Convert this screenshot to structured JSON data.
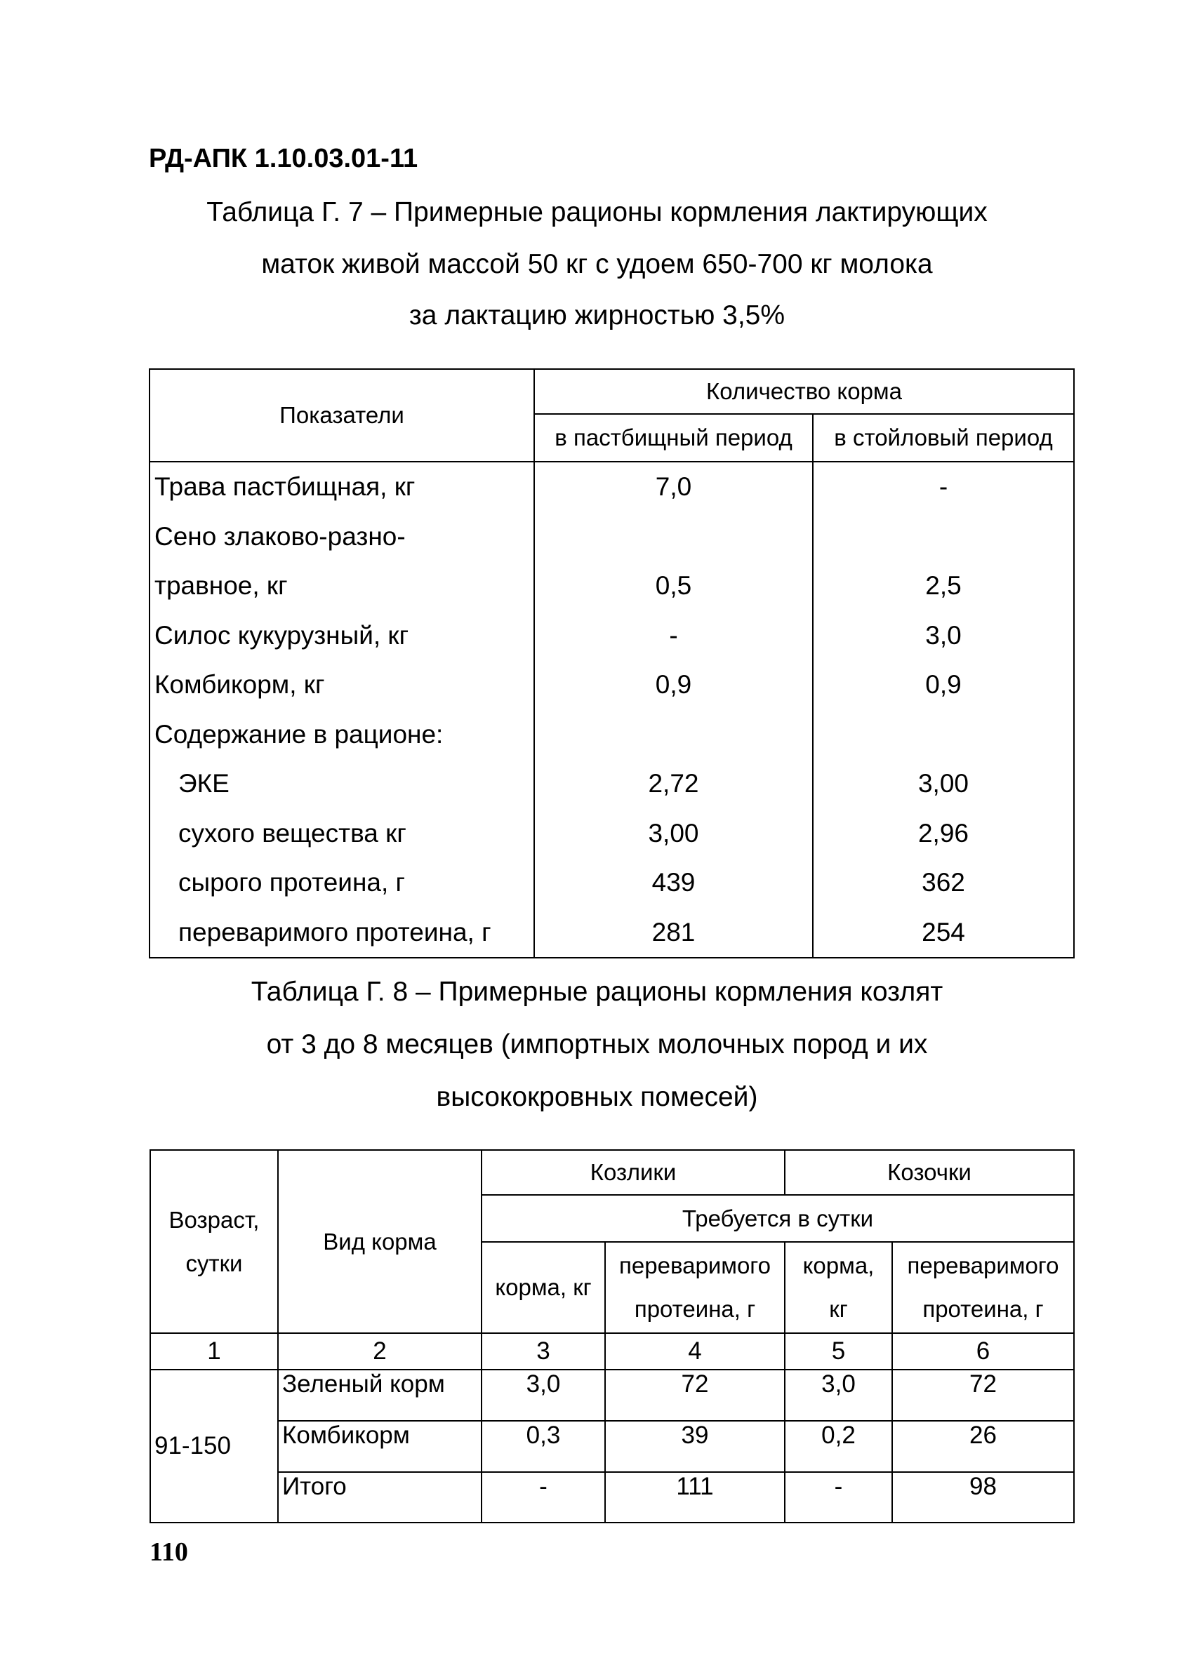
{
  "header": {
    "doc_code": "РД-АПК 1.10.03.01-11"
  },
  "table1": {
    "caption": [
      "Таблица Г. 7 – Примерные рационы кормления лактирующих",
      "маток живой массой 50 кг с удоем 650-700 кг молока",
      "за лактацию жирностью 3,5%"
    ],
    "col_indicators": "Показатели",
    "col_group": "Количество корма",
    "col_pasture": "в пастбищный период",
    "col_stall": "в стойловый период",
    "rows": [
      {
        "label": "Трава пастбищная, кг",
        "pasture": "7,0",
        "stall": "-"
      },
      {
        "label": "Сено злаково-разно-",
        "pasture": "",
        "stall": ""
      },
      {
        "label": "травное, кг",
        "pasture": "0,5",
        "stall": "2,5"
      },
      {
        "label": "Силос кукурузный, кг",
        "pasture": "-",
        "stall": "3,0"
      },
      {
        "label": "Комбикорм, кг",
        "pasture": "0,9",
        "stall": "0,9"
      },
      {
        "label": "Содержание в рационе:",
        "pasture": "",
        "stall": ""
      },
      {
        "label": "ЭКЕ",
        "pasture": "2,72",
        "stall": "3,00",
        "indent": true
      },
      {
        "label": "сухого вещества кг",
        "pasture": "3,00",
        "stall": "2,96",
        "indent": true
      },
      {
        "label": "сырого протеина, г",
        "pasture": "439",
        "stall": "362",
        "indent": true
      },
      {
        "label": "переваримого протеина, г",
        "pasture": "281",
        "stall": "254",
        "indent": true
      }
    ]
  },
  "table2": {
    "caption": [
      "Таблица Г. 8 – Примерные рационы кормления козлят",
      "от 3 до 8 месяцев (импортных молочных пород и их",
      "высококровных помесей)"
    ],
    "col_age": [
      "Возраст,",
      "сутки"
    ],
    "col_feed": "Вид корма",
    "group_males": "Козлики",
    "group_females": "Козочки",
    "required": "Требуется в сутки",
    "sub_feed_kg": "корма, кг",
    "sub_protein": [
      "переваримого",
      "протеина, г"
    ],
    "sub_feed_kg_2": [
      "корма,",
      "кг"
    ],
    "sub_protein_2": [
      "переваримого",
      "протеина, г"
    ],
    "col_numbers": [
      "1",
      "2",
      "3",
      "4",
      "5",
      "6"
    ],
    "age_group": "91-150",
    "rows": [
      {
        "feed": "Зеленый корм",
        "m_feed": "3,0",
        "m_protein": "72",
        "f_feed": "3,0",
        "f_protein": "72"
      },
      {
        "feed": "Комбикорм",
        "m_feed": "0,3",
        "m_protein": "39",
        "f_feed": "0,2",
        "f_protein": "26"
      },
      {
        "feed": "Итого",
        "m_feed": "-",
        "m_protein": "111",
        "f_feed": "-",
        "f_protein": "98"
      }
    ]
  },
  "footer": {
    "page_number": "110"
  }
}
